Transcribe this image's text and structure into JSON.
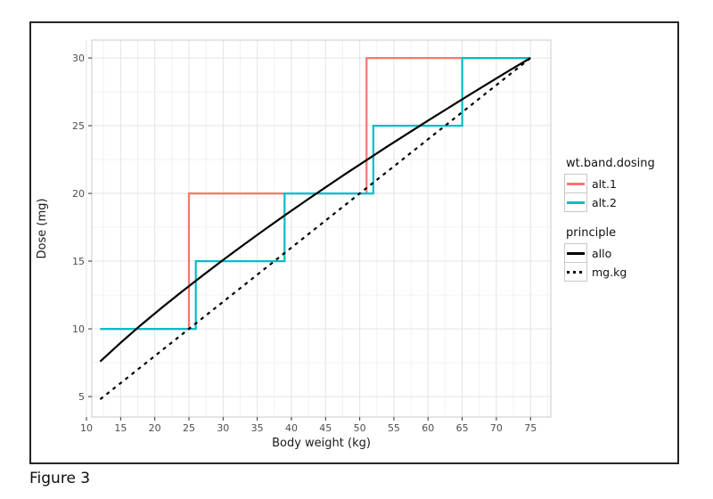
{
  "figure": {
    "caption": "Figure 3"
  },
  "chart_data": {
    "type": "line",
    "title": "",
    "xlabel": "Body weight (kg)",
    "ylabel": "Dose (mg)",
    "x_ticks": [
      10,
      15,
      20,
      25,
      30,
      35,
      40,
      45,
      50,
      55,
      60,
      65,
      70,
      75
    ],
    "y_ticks": [
      5,
      10,
      15,
      20,
      25,
      30
    ],
    "x_minor_ticks": [
      12.5,
      17.5,
      22.5,
      27.5,
      32.5,
      37.5,
      42.5,
      47.5,
      52.5,
      57.5,
      62.5,
      67.5,
      72.5,
      77.5
    ],
    "y_minor_ticks": [
      7.5,
      12.5,
      17.5,
      22.5,
      27.5
    ],
    "xlim": [
      10.78,
      77.97
    ],
    "ylim": [
      3.49,
      31.32
    ],
    "grid": {
      "major": true,
      "minor": true
    },
    "legend_position": "right",
    "legend": {
      "groups": [
        {
          "title": "wt.band.dosing",
          "entries": [
            {
              "label": "alt.1",
              "color": "#F8766D",
              "dash": "solid"
            },
            {
              "label": "alt.2",
              "color": "#00BFC4",
              "dash": "solid"
            }
          ]
        },
        {
          "title": "principle",
          "entries": [
            {
              "label": "allo",
              "color": "#000000",
              "dash": "solid"
            },
            {
              "label": "mg.kg",
              "color": "#000000",
              "dash": "dashed"
            }
          ]
        }
      ]
    },
    "series": [
      {
        "name": "alt.1",
        "group": "wt.band.dosing",
        "style": "step",
        "dash": "solid",
        "color": "#F8766D",
        "description": "weight-band dosing alternative 1: 10 mg for 12-25 kg, 20 mg for 25-51 kg, 30 mg for 51-75 kg",
        "points": [
          [
            12,
            10
          ],
          [
            25,
            10
          ],
          [
            25,
            20
          ],
          [
            51,
            20
          ],
          [
            51,
            30
          ],
          [
            75,
            30
          ]
        ]
      },
      {
        "name": "alt.2",
        "group": "wt.band.dosing",
        "style": "step",
        "dash": "solid",
        "color": "#00BFC4",
        "description": "weight-band dosing alternative 2: 10 mg 12-26 kg, 15 mg 26-39 kg, 20 mg 39-52 kg, 25 mg 52-65 kg, 30 mg 65-75 kg",
        "points": [
          [
            12,
            10
          ],
          [
            26,
            10
          ],
          [
            26,
            15
          ],
          [
            39,
            15
          ],
          [
            39,
            20
          ],
          [
            52,
            20
          ],
          [
            52,
            25
          ],
          [
            65,
            25
          ],
          [
            65,
            30
          ],
          [
            75,
            30
          ]
        ]
      },
      {
        "name": "allo",
        "group": "principle",
        "style": "curve",
        "dash": "solid",
        "color": "#000000",
        "formula": "dose = 30*(weight/75)^0.75",
        "points": [
          [
            12,
            7.59
          ],
          [
            15,
            8.97
          ],
          [
            18,
            10.29
          ],
          [
            21,
            11.55
          ],
          [
            24,
            12.76
          ],
          [
            27,
            13.94
          ],
          [
            30,
            15.09
          ],
          [
            33,
            16.21
          ],
          [
            36,
            17.3
          ],
          [
            39,
            18.37
          ],
          [
            42,
            19.42
          ],
          [
            45,
            20.45
          ],
          [
            48,
            21.47
          ],
          [
            51,
            22.46
          ],
          [
            54,
            23.45
          ],
          [
            57,
            24.42
          ],
          [
            60,
            25.38
          ],
          [
            63,
            26.32
          ],
          [
            66,
            27.26
          ],
          [
            69,
            28.18
          ],
          [
            72,
            29.1
          ],
          [
            75,
            30.0
          ]
        ]
      },
      {
        "name": "mg.kg",
        "group": "principle",
        "style": "line",
        "dash": "dashed",
        "color": "#000000",
        "formula": "dose = 0.4*weight",
        "points": [
          [
            12,
            4.8
          ],
          [
            75,
            30
          ]
        ]
      }
    ]
  },
  "colors": {
    "alt1": "#F8766D",
    "alt2": "#00BFC4",
    "curve": "#000000",
    "grid_major": "#e4e4e4",
    "grid_minor": "#f2f2f2",
    "panel_border": "#c9c9c9",
    "tick": "#333333",
    "tick_label": "#4d4d4d",
    "axis_title": "#1a1a1a"
  }
}
